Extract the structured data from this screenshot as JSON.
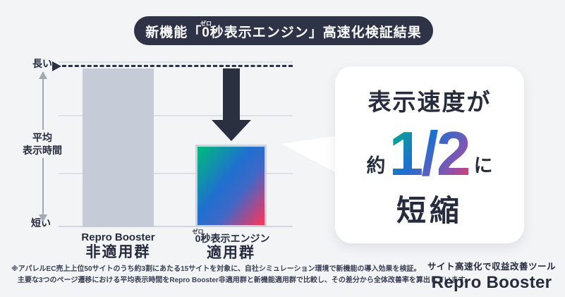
{
  "colors": {
    "background": "#f3f4f6",
    "navy": "#262b3e",
    "banner_bg": "#2e3347",
    "bar_gray": "#c6cbd8",
    "gridline": "#dcdfe5",
    "gradient_green": "#00b87e",
    "gradient_blue": "#1e6fd0",
    "gradient_purple": "#7e57b4",
    "gradient_pink": "#f4325f"
  },
  "banner": {
    "prefix": "新機能「",
    "zero": "0",
    "zero_ruby": "ゼロ",
    "suffix": "秒表示エンジン」高速化検証結果"
  },
  "chart": {
    "y_top_label": "長い",
    "y_bottom_label": "短い",
    "y_axis_label_line1": "平均",
    "y_axis_label_line2": "表示時間",
    "bars": [
      {
        "label_en": "Repro Booster",
        "label_jp": "非適用群"
      },
      {
        "label_zero": "0",
        "label_zero_ruby": "ゼロ",
        "label_rest": "秒表示エンジン",
        "label_jp": "適用群"
      }
    ]
  },
  "chart_data": {
    "type": "bar",
    "title": "新機能「0秒表示エンジン」高速化検証結果",
    "categories": [
      "Repro Booster 非適用群",
      "0秒表示エンジン 適用群"
    ],
    "values": [
      100,
      52
    ],
    "xlabel": "",
    "ylabel": "平均表示時間",
    "y_axis_range_labels": {
      "top": "長い",
      "bottom": "短い"
    },
    "ylim": [
      0,
      100
    ],
    "value_unit": "relative (非適用群 = 100)",
    "grid": true,
    "legend": "none",
    "annotations": [
      "表示速度が 約1/2 に短縮",
      "非適用群の高さを示す破線と下向き矢印で短縮を強調"
    ]
  },
  "callout": {
    "line1": "表示速度が",
    "approx": "約",
    "fraction": "1/2",
    "ni": "に",
    "line3": "短縮"
  },
  "footnote": {
    "line1": "※アパレルEC売上上位50サイトのうち約3割にあたる15サイトを対象に、自社シミュレーション環境で新機能の導入効果を検証。",
    "line2": "主要な3つのページ遷移における平均表示時間をRepro Booster非適用群と新機能適用群で比較し、その差分から全体改善率を算出しています。"
  },
  "footer_logo": {
    "tagline": "サイト高速化で収益改善ツール",
    "name": "Repro Booster"
  }
}
